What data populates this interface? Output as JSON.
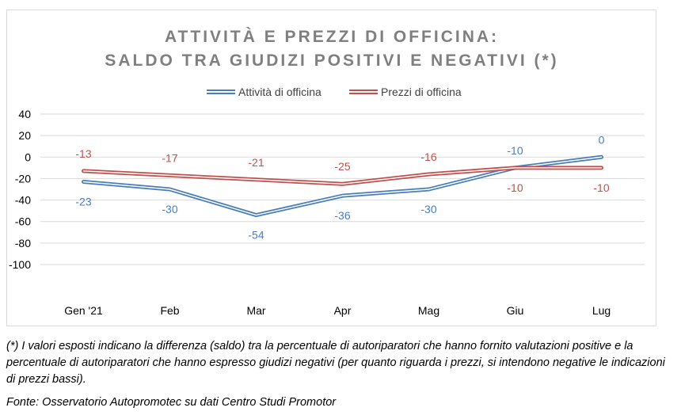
{
  "chart_data": {
    "type": "line",
    "title_lines": [
      "ATTIVITÀ E PREZZI DI OFFICINA:",
      "SALDO TRA GIUDIZI POSITIVI E NEGATIVI (*)"
    ],
    "categories": [
      "Gen '21",
      "Feb",
      "Mar",
      "Apr",
      "Mag",
      "Giu",
      "Lug"
    ],
    "series": [
      {
        "name": "Attività di officina",
        "color": "#4a7ebb",
        "values": [
          -23,
          -30,
          -54,
          -36,
          -30,
          -10,
          0
        ],
        "labels": [
          "-23",
          "-30",
          "-54",
          "-36",
          "-30",
          "-10",
          "0"
        ]
      },
      {
        "name": "Prezzi di officina",
        "color": "#c0504d",
        "values": [
          -13,
          -17,
          -21,
          -25,
          -16,
          -10,
          -10
        ],
        "labels": [
          "-13",
          "-17",
          "-21",
          "-25",
          "-16",
          "-10",
          "-10"
        ]
      }
    ],
    "y_ticks": [
      "40",
      "20",
      "0",
      "-20",
      "-40",
      "-60",
      "-80",
      "-100"
    ],
    "ylim": [
      -100,
      40
    ],
    "grid": true,
    "legend_position": "top"
  },
  "footnote": "(*) I valori esposti indicano la differenza (saldo) tra la percentuale di autoriparatori che hanno fornito valutazioni positive e la percentuale di autoriparatori che hanno espresso giudizi negativi (per quanto riguarda i prezzi, si intendono negative le indicazioni di prezzi bassi).",
  "source": "Fonte: Osservatorio Autopromotec su dati Centro Studi Promotor"
}
